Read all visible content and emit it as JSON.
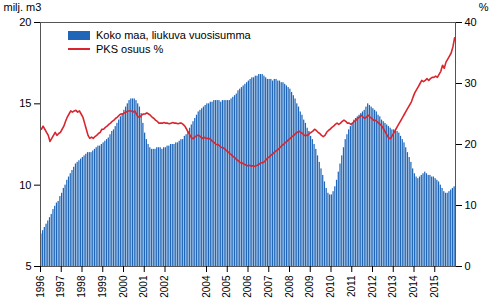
{
  "chart_data": {
    "type": "bar",
    "y_label": "milj. m3",
    "y2_label": "%",
    "ylim": [
      5,
      20
    ],
    "yticks": [
      5,
      10,
      15,
      20
    ],
    "y2lim": [
      0,
      40
    ],
    "y2ticks": [
      0,
      10,
      20,
      30,
      40
    ],
    "legend": "top-left",
    "categories": [
      "1996",
      null,
      null,
      null,
      null,
      null,
      null,
      null,
      null,
      null,
      null,
      null,
      "1997",
      null,
      null,
      null,
      null,
      null,
      null,
      null,
      null,
      null,
      null,
      null,
      "1998",
      null,
      null,
      null,
      null,
      null,
      null,
      null,
      null,
      null,
      null,
      null,
      "1999",
      null,
      null,
      null,
      null,
      null,
      null,
      null,
      null,
      null,
      null,
      null,
      "2000",
      null,
      null,
      null,
      null,
      null,
      null,
      null,
      null,
      null,
      null,
      null,
      "2001",
      null,
      null,
      null,
      null,
      null,
      null,
      null,
      null,
      null,
      null,
      null,
      "2002",
      null,
      null,
      null,
      null,
      null,
      null,
      null,
      null,
      null,
      null,
      null,
      null,
      null,
      null,
      null,
      null,
      null,
      null,
      null,
      null,
      null,
      null,
      null,
      "2004",
      null,
      null,
      null,
      null,
      null,
      null,
      null,
      null,
      null,
      null,
      null,
      "2005",
      null,
      null,
      null,
      null,
      null,
      null,
      null,
      null,
      null,
      null,
      null,
      "2006",
      null,
      null,
      null,
      null,
      null,
      null,
      null,
      null,
      null,
      null,
      null,
      "2007",
      null,
      null,
      null,
      null,
      null,
      null,
      null,
      null,
      null,
      null,
      null,
      "2008",
      null,
      null,
      null,
      null,
      null,
      null,
      null,
      null,
      null,
      null,
      null,
      "2009",
      null,
      null,
      null,
      null,
      null,
      null,
      null,
      null,
      null,
      null,
      null,
      "2010",
      null,
      null,
      null,
      null,
      null,
      null,
      null,
      null,
      null,
      null,
      null,
      "2011",
      null,
      null,
      null,
      null,
      null,
      null,
      null,
      null,
      null,
      null,
      null,
      "2012",
      null,
      null,
      null,
      null,
      null,
      null,
      null,
      null,
      null,
      null,
      null,
      "2013",
      null,
      null,
      null,
      null,
      null,
      null,
      null,
      null,
      null,
      null,
      null,
      "2014",
      null,
      null,
      null,
      null,
      null,
      null,
      null,
      null,
      null,
      null,
      null,
      "2015",
      null,
      null,
      null,
      null,
      null,
      null,
      null,
      null,
      null,
      null,
      null
    ],
    "series": [
      {
        "name": "Koko maa, liukuva vuosisumma",
        "type": "bar",
        "color": "#1f66b8",
        "values": [
          7.0,
          7.2,
          7.4,
          7.6,
          7.8,
          8.0,
          8.2,
          8.5,
          8.7,
          8.9,
          9.0,
          9.3,
          9.5,
          9.8,
          10.0,
          10.3,
          10.5,
          10.7,
          10.9,
          11.1,
          11.3,
          11.4,
          11.5,
          11.6,
          11.7,
          11.8,
          11.9,
          12.0,
          12.0,
          12.0,
          12.1,
          12.2,
          12.3,
          12.4,
          12.4,
          12.5,
          12.6,
          12.7,
          12.8,
          12.9,
          13.1,
          13.3,
          13.4,
          13.6,
          13.8,
          14.0,
          14.2,
          14.4,
          14.6,
          14.8,
          15.0,
          15.2,
          15.3,
          15.3,
          15.3,
          15.2,
          15.0,
          14.8,
          14.4,
          13.8,
          13.2,
          12.8,
          12.5,
          12.3,
          12.2,
          12.2,
          12.2,
          12.3,
          12.3,
          12.3,
          12.2,
          12.3,
          12.3,
          12.4,
          12.4,
          12.5,
          12.5,
          12.5,
          12.6,
          12.6,
          12.7,
          12.8,
          12.8,
          13.0,
          13.1,
          13.3,
          13.5,
          13.7,
          13.9,
          14.1,
          14.3,
          14.5,
          14.6,
          14.7,
          14.8,
          14.9,
          15.0,
          15.0,
          15.1,
          15.1,
          15.2,
          15.2,
          15.2,
          15.2,
          15.1,
          15.2,
          15.2,
          15.2,
          15.2,
          15.2,
          15.3,
          15.4,
          15.5,
          15.6,
          15.8,
          15.9,
          16.0,
          16.1,
          16.2,
          16.3,
          16.4,
          16.5,
          16.6,
          16.6,
          16.7,
          16.7,
          16.8,
          16.8,
          16.8,
          16.7,
          16.6,
          16.5,
          16.5,
          16.5,
          16.4,
          16.5,
          16.5,
          16.4,
          16.4,
          16.3,
          16.3,
          16.2,
          16.1,
          16.0,
          15.9,
          15.7,
          15.5,
          15.3,
          15.0,
          14.8,
          14.5,
          14.3,
          14.0,
          13.8,
          13.5,
          13.3,
          13.0,
          12.8,
          12.5,
          12.2,
          11.8,
          11.4,
          11.0,
          10.6,
          10.2,
          9.8,
          9.5,
          9.4,
          9.4,
          9.6,
          9.9,
          10.3,
          10.8,
          11.3,
          11.8,
          12.3,
          12.8,
          13.1,
          13.4,
          13.6,
          13.8,
          14.0,
          14.1,
          14.2,
          14.3,
          14.4,
          14.5,
          14.6,
          14.8,
          15.0,
          14.9,
          14.8,
          14.7,
          14.6,
          14.5,
          14.3,
          14.2,
          14.0,
          13.9,
          13.8,
          13.7,
          13.6,
          13.5,
          13.4,
          13.4,
          13.3,
          13.3,
          13.2,
          13.0,
          12.8,
          12.6,
          12.3,
          12.0,
          11.7,
          11.4,
          11.0,
          10.7,
          10.5,
          10.4,
          10.5,
          10.6,
          10.7,
          10.8,
          10.7,
          10.6,
          10.6,
          10.5,
          10.5,
          10.4,
          10.3,
          10.2,
          10.0,
          9.8,
          9.6,
          9.5,
          9.5,
          9.6,
          9.7,
          9.8,
          9.9
        ]
      },
      {
        "name": "PKS osuus %",
        "type": "line",
        "axis": "y2",
        "color": "#d9262e",
        "values": [
          22.5,
          23.0,
          22.5,
          22.0,
          21.5,
          20.5,
          21.0,
          21.5,
          22.0,
          21.5,
          21.8,
          22.0,
          22.5,
          23.0,
          23.8,
          24.5,
          25.0,
          25.5,
          25.3,
          25.5,
          25.6,
          25.3,
          25.5,
          25.0,
          24.5,
          23.5,
          22.5,
          21.5,
          21.0,
          21.2,
          21.0,
          21.3,
          21.5,
          21.8,
          22.0,
          22.5,
          22.5,
          22.8,
          23.0,
          23.3,
          23.5,
          23.8,
          24.0,
          24.3,
          24.5,
          24.8,
          25.0,
          25.0,
          25.2,
          25.3,
          25.5,
          25.5,
          25.5,
          25.3,
          25.5,
          25.0,
          24.5,
          24.5,
          24.8,
          25.0,
          25.0,
          25.2,
          25.0,
          24.8,
          24.5,
          24.3,
          24.0,
          23.8,
          23.5,
          23.5,
          23.5,
          23.6,
          23.5,
          23.5,
          23.4,
          23.5,
          23.6,
          23.5,
          23.5,
          23.4,
          23.5,
          23.5,
          23.3,
          23.0,
          22.5,
          22.0,
          21.5,
          21.0,
          21.0,
          21.3,
          21.5,
          21.5,
          21.3,
          21.0,
          21.2,
          21.0,
          21.0,
          21.0,
          20.8,
          20.5,
          20.3,
          20.0,
          20.0,
          19.8,
          19.5,
          19.5,
          19.3,
          19.0,
          18.8,
          18.5,
          18.3,
          18.0,
          17.8,
          17.5,
          17.3,
          17.0,
          17.0,
          16.8,
          16.7,
          16.5,
          16.6,
          16.5,
          16.5,
          16.4,
          16.5,
          16.6,
          16.8,
          17.0,
          17.0,
          17.2,
          17.5,
          17.8,
          18.0,
          18.3,
          18.5,
          18.8,
          19.0,
          19.2,
          19.5,
          19.8,
          20.0,
          20.3,
          20.5,
          20.8,
          21.0,
          21.3,
          21.5,
          21.8,
          22.0,
          22.2,
          22.0,
          21.8,
          21.5,
          21.5,
          21.5,
          21.8,
          22.0,
          22.2,
          22.5,
          22.3,
          22.0,
          21.8,
          21.5,
          21.3,
          21.5,
          22.0,
          22.3,
          22.5,
          22.8,
          23.0,
          23.3,
          23.5,
          23.3,
          23.5,
          23.8,
          24.0,
          23.8,
          23.5,
          23.5,
          23.3,
          23.5,
          23.8,
          24.0,
          24.3,
          24.5,
          24.8,
          24.5,
          24.3,
          24.5,
          24.8,
          24.5,
          24.3,
          24.0,
          24.0,
          23.8,
          23.5,
          23.3,
          23.0,
          22.5,
          22.0,
          21.5,
          21.0,
          21.0,
          21.5,
          22.0,
          22.5,
          23.0,
          23.5,
          24.0,
          24.5,
          25.0,
          25.5,
          26.0,
          26.5,
          27.0,
          27.8,
          28.5,
          29.0,
          29.5,
          30.0,
          30.5,
          30.3,
          30.5,
          30.8,
          30.5,
          30.8,
          31.0,
          31.0,
          31.2,
          31.0,
          31.5,
          32.0,
          33.0,
          32.5,
          33.5,
          34.0,
          34.5,
          35.0,
          36.0,
          37.5
        ]
      }
    ]
  }
}
